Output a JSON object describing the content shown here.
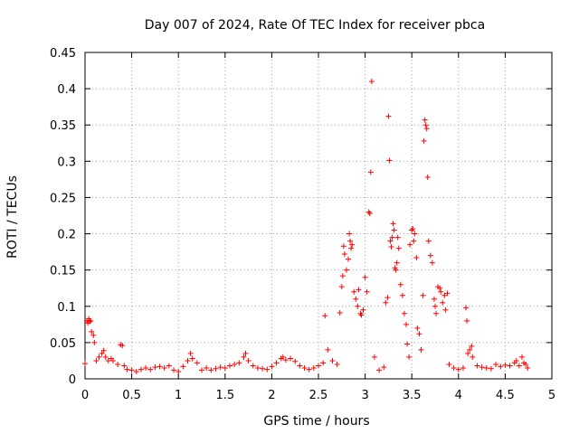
{
  "chart_data": {
    "type": "scatter",
    "title": "Day 007 of 2024, Rate Of TEC Index for receiver pbca",
    "xlabel": "GPS time / hours",
    "ylabel": "ROTI / TECUs",
    "xlim": [
      0,
      5
    ],
    "ylim": [
      0,
      0.45
    ],
    "xticks": [
      0,
      0.5,
      1,
      1.5,
      2,
      2.5,
      3,
      3.5,
      4,
      4.5,
      5
    ],
    "xtick_labels": [
      "0",
      "0.5",
      "1",
      "1.5",
      "2",
      "2.5",
      "3",
      "3.5",
      "4",
      "4.5",
      "5"
    ],
    "yticks": [
      0,
      0.05,
      0.1,
      0.15,
      0.2,
      0.25,
      0.3,
      0.35,
      0.4,
      0.45
    ],
    "ytick_labels": [
      "0",
      "0.05",
      "0.1",
      "0.15",
      "0.2",
      "0.25",
      "0.3",
      "0.35",
      "0.4",
      "0.45"
    ],
    "grid": true,
    "marker": "+",
    "color": "#ff0000",
    "series": [
      {
        "name": "ROTI",
        "points": [
          [
            0.0,
            0.021
          ],
          [
            0.02,
            0.08
          ],
          [
            0.03,
            0.077
          ],
          [
            0.04,
            0.083
          ],
          [
            0.05,
            0.079
          ],
          [
            0.06,
            0.08
          ],
          [
            0.07,
            0.065
          ],
          [
            0.09,
            0.06
          ],
          [
            0.1,
            0.05
          ],
          [
            0.12,
            0.025
          ],
          [
            0.15,
            0.03
          ],
          [
            0.18,
            0.035
          ],
          [
            0.2,
            0.039
          ],
          [
            0.22,
            0.03
          ],
          [
            0.25,
            0.025
          ],
          [
            0.28,
            0.028
          ],
          [
            0.3,
            0.025
          ],
          [
            0.35,
            0.02
          ],
          [
            0.38,
            0.047
          ],
          [
            0.4,
            0.046
          ],
          [
            0.42,
            0.018
          ],
          [
            0.45,
            0.013
          ],
          [
            0.5,
            0.012
          ],
          [
            0.55,
            0.01
          ],
          [
            0.6,
            0.013
          ],
          [
            0.65,
            0.015
          ],
          [
            0.7,
            0.013
          ],
          [
            0.75,
            0.016
          ],
          [
            0.8,
            0.017
          ],
          [
            0.85,
            0.015
          ],
          [
            0.9,
            0.018
          ],
          [
            0.95,
            0.012
          ],
          [
            1.0,
            0.01
          ],
          [
            1.05,
            0.017
          ],
          [
            1.1,
            0.025
          ],
          [
            1.13,
            0.035
          ],
          [
            1.15,
            0.028
          ],
          [
            1.2,
            0.022
          ],
          [
            1.25,
            0.012
          ],
          [
            1.3,
            0.015
          ],
          [
            1.35,
            0.012
          ],
          [
            1.4,
            0.014
          ],
          [
            1.45,
            0.016
          ],
          [
            1.5,
            0.015
          ],
          [
            1.55,
            0.018
          ],
          [
            1.6,
            0.02
          ],
          [
            1.65,
            0.022
          ],
          [
            1.7,
            0.03
          ],
          [
            1.72,
            0.035
          ],
          [
            1.75,
            0.025
          ],
          [
            1.8,
            0.018
          ],
          [
            1.85,
            0.015
          ],
          [
            1.9,
            0.014
          ],
          [
            1.95,
            0.013
          ],
          [
            2.0,
            0.017
          ],
          [
            2.05,
            0.022
          ],
          [
            2.1,
            0.028
          ],
          [
            2.12,
            0.03
          ],
          [
            2.15,
            0.026
          ],
          [
            2.2,
            0.028
          ],
          [
            2.25,
            0.024
          ],
          [
            2.3,
            0.018
          ],
          [
            2.35,
            0.015
          ],
          [
            2.4,
            0.013
          ],
          [
            2.45,
            0.015
          ],
          [
            2.5,
            0.018
          ],
          [
            2.55,
            0.022
          ],
          [
            2.57,
            0.087
          ],
          [
            2.6,
            0.04
          ],
          [
            2.65,
            0.025
          ],
          [
            2.7,
            0.02
          ],
          [
            2.73,
            0.091
          ],
          [
            2.75,
            0.127
          ],
          [
            2.76,
            0.142
          ],
          [
            2.77,
            0.183
          ],
          [
            2.78,
            0.172
          ],
          [
            2.8,
            0.15
          ],
          [
            2.82,
            0.165
          ],
          [
            2.83,
            0.2
          ],
          [
            2.84,
            0.19
          ],
          [
            2.85,
            0.18
          ],
          [
            2.86,
            0.185
          ],
          [
            2.88,
            0.12
          ],
          [
            2.9,
            0.11
          ],
          [
            2.92,
            0.1
          ],
          [
            2.93,
            0.123
          ],
          [
            2.95,
            0.09
          ],
          [
            2.96,
            0.088
          ],
          [
            2.98,
            0.095
          ],
          [
            3.0,
            0.14
          ],
          [
            3.02,
            0.12
          ],
          [
            3.04,
            0.23
          ],
          [
            3.05,
            0.228
          ],
          [
            3.06,
            0.285
          ],
          [
            3.07,
            0.41
          ],
          [
            3.1,
            0.03
          ],
          [
            3.15,
            0.012
          ],
          [
            3.2,
            0.016
          ],
          [
            3.22,
            0.105
          ],
          [
            3.24,
            0.112
          ],
          [
            3.25,
            0.362
          ],
          [
            3.26,
            0.301
          ],
          [
            3.27,
            0.19
          ],
          [
            3.28,
            0.182
          ],
          [
            3.29,
            0.195
          ],
          [
            3.3,
            0.214
          ],
          [
            3.31,
            0.205
          ],
          [
            3.32,
            0.153
          ],
          [
            3.33,
            0.15
          ],
          [
            3.34,
            0.16
          ],
          [
            3.35,
            0.195
          ],
          [
            3.36,
            0.18
          ],
          [
            3.38,
            0.13
          ],
          [
            3.4,
            0.115
          ],
          [
            3.42,
            0.09
          ],
          [
            3.44,
            0.075
          ],
          [
            3.45,
            0.048
          ],
          [
            3.47,
            0.03
          ],
          [
            3.48,
            0.185
          ],
          [
            3.5,
            0.205
          ],
          [
            3.51,
            0.207
          ],
          [
            3.52,
            0.19
          ],
          [
            3.53,
            0.2
          ],
          [
            3.55,
            0.167
          ],
          [
            3.56,
            0.07
          ],
          [
            3.58,
            0.062
          ],
          [
            3.6,
            0.04
          ],
          [
            3.62,
            0.115
          ],
          [
            3.63,
            0.328
          ],
          [
            3.64,
            0.357
          ],
          [
            3.65,
            0.35
          ],
          [
            3.66,
            0.345
          ],
          [
            3.67,
            0.278
          ],
          [
            3.68,
            0.19
          ],
          [
            3.7,
            0.17
          ],
          [
            3.72,
            0.16
          ],
          [
            3.74,
            0.11
          ],
          [
            3.75,
            0.1
          ],
          [
            3.76,
            0.09
          ],
          [
            3.78,
            0.127
          ],
          [
            3.8,
            0.125
          ],
          [
            3.81,
            0.12
          ],
          [
            3.83,
            0.105
          ],
          [
            3.85,
            0.115
          ],
          [
            3.86,
            0.095
          ],
          [
            3.88,
            0.118
          ],
          [
            3.9,
            0.02
          ],
          [
            3.95,
            0.015
          ],
          [
            4.0,
            0.013
          ],
          [
            4.05,
            0.015
          ],
          [
            4.08,
            0.098
          ],
          [
            4.09,
            0.08
          ],
          [
            4.1,
            0.035
          ],
          [
            4.12,
            0.04
          ],
          [
            4.14,
            0.045
          ],
          [
            4.15,
            0.03
          ],
          [
            4.2,
            0.018
          ],
          [
            4.25,
            0.016
          ],
          [
            4.3,
            0.015
          ],
          [
            4.35,
            0.014
          ],
          [
            4.4,
            0.02
          ],
          [
            4.45,
            0.017
          ],
          [
            4.5,
            0.019
          ],
          [
            4.55,
            0.018
          ],
          [
            4.6,
            0.022
          ],
          [
            4.62,
            0.025
          ],
          [
            4.65,
            0.018
          ],
          [
            4.68,
            0.03
          ],
          [
            4.7,
            0.022
          ],
          [
            4.72,
            0.02
          ],
          [
            4.74,
            0.015
          ]
        ]
      }
    ]
  }
}
